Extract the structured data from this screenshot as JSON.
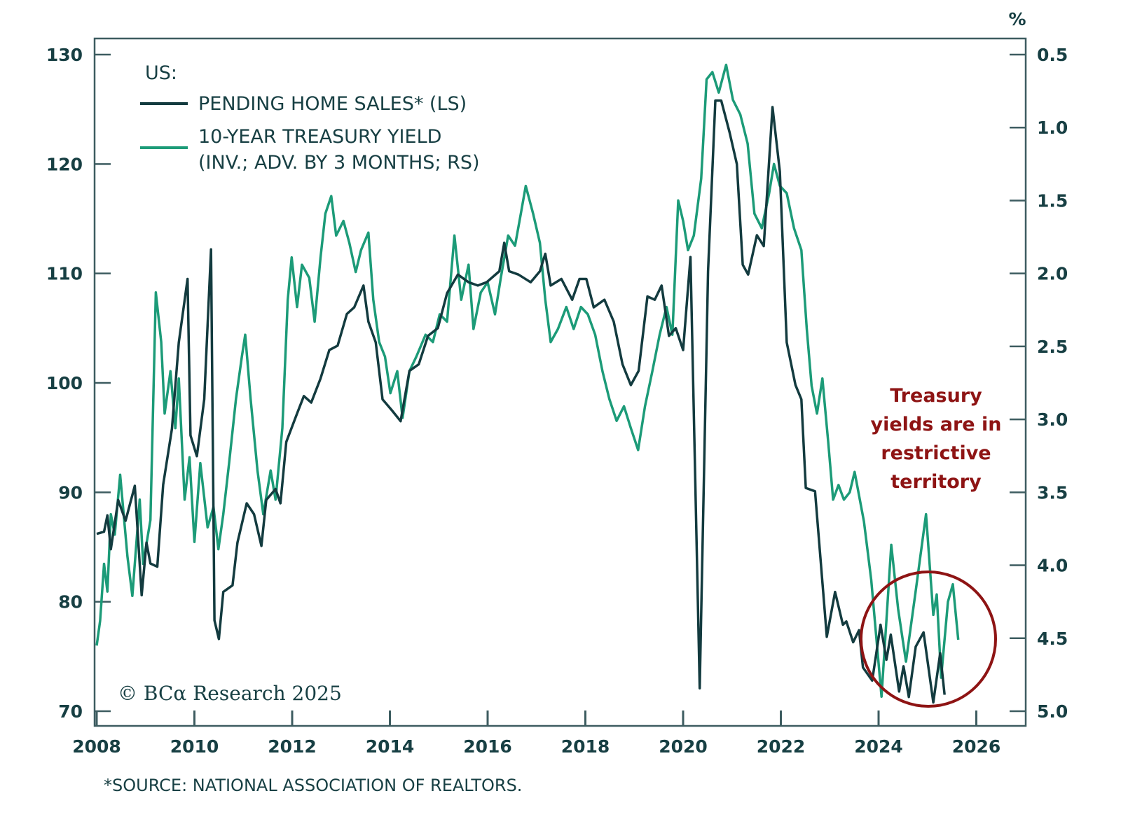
{
  "chart_data": {
    "type": "line",
    "title": "US:",
    "unit_right": "%",
    "x_ticks": [
      "2008",
      "2010",
      "2012",
      "2014",
      "2016",
      "2018",
      "2020",
      "2022",
      "2024",
      "2026"
    ],
    "xlim": [
      2008,
      2026.8
    ],
    "left_axis": {
      "ylim": [
        70,
        130
      ],
      "ticks": [
        "130",
        "120",
        "110",
        "100",
        "90",
        "80",
        "70"
      ]
    },
    "right_axis": {
      "ylim": [
        0.5,
        5.0
      ],
      "inverted": true,
      "ticks": [
        "0.5",
        "1.0",
        "1.5",
        "2.0",
        "2.5",
        "3.0",
        "3.5",
        "4.0",
        "4.5",
        "5.0"
      ]
    },
    "series": [
      {
        "name": "PENDING HOME SALES* (LS)",
        "axis": "left",
        "color": "#133b3f",
        "points": [
          [
            2008.0,
            86.2
          ],
          [
            2008.15,
            86.4
          ],
          [
            2008.22,
            87.9
          ],
          [
            2008.29,
            84.8
          ],
          [
            2008.44,
            89.3
          ],
          [
            2008.59,
            87.4
          ],
          [
            2008.78,
            90.6
          ],
          [
            2008.92,
            80.6
          ],
          [
            2009.02,
            85.4
          ],
          [
            2009.1,
            83.5
          ],
          [
            2009.24,
            83.2
          ],
          [
            2009.36,
            90.7
          ],
          [
            2009.54,
            95.8
          ],
          [
            2009.68,
            103.7
          ],
          [
            2009.86,
            109.5
          ],
          [
            2009.92,
            95.2
          ],
          [
            2010.05,
            93.3
          ],
          [
            2010.2,
            98.5
          ],
          [
            2010.34,
            112.2
          ],
          [
            2010.41,
            78.3
          ],
          [
            2010.5,
            76.6
          ],
          [
            2010.59,
            80.9
          ],
          [
            2010.78,
            81.5
          ],
          [
            2010.88,
            85.4
          ],
          [
            2011.07,
            89
          ],
          [
            2011.22,
            88
          ],
          [
            2011.37,
            85.1
          ],
          [
            2011.47,
            89.3
          ],
          [
            2011.66,
            90.3
          ],
          [
            2011.76,
            89
          ],
          [
            2011.88,
            94.6
          ],
          [
            2012.1,
            97.2
          ],
          [
            2012.24,
            98.8
          ],
          [
            2012.39,
            98.2
          ],
          [
            2012.58,
            100.4
          ],
          [
            2012.76,
            103
          ],
          [
            2012.93,
            103.4
          ],
          [
            2013.12,
            106.3
          ],
          [
            2013.27,
            106.9
          ],
          [
            2013.46,
            108.9
          ],
          [
            2013.56,
            105.6
          ],
          [
            2013.71,
            103.7
          ],
          [
            2013.85,
            98.5
          ],
          [
            2014.04,
            97.5
          ],
          [
            2014.22,
            96.5
          ],
          [
            2014.4,
            101.1
          ],
          [
            2014.59,
            101.7
          ],
          [
            2014.78,
            104.3
          ],
          [
            2014.98,
            105
          ],
          [
            2015.17,
            108.2
          ],
          [
            2015.39,
            109.9
          ],
          [
            2015.61,
            109.2
          ],
          [
            2015.8,
            108.9
          ],
          [
            2015.98,
            109.2
          ],
          [
            2016.24,
            110.2
          ],
          [
            2016.34,
            112.8
          ],
          [
            2016.44,
            110.2
          ],
          [
            2016.63,
            109.9
          ],
          [
            2016.88,
            109.2
          ],
          [
            2017.07,
            110.2
          ],
          [
            2017.18,
            111.8
          ],
          [
            2017.29,
            108.9
          ],
          [
            2017.51,
            109.5
          ],
          [
            2017.73,
            107.6
          ],
          [
            2017.88,
            109.5
          ],
          [
            2018.02,
            109.5
          ],
          [
            2018.17,
            106.9
          ],
          [
            2018.39,
            107.6
          ],
          [
            2018.58,
            105.6
          ],
          [
            2018.76,
            101.7
          ],
          [
            2018.93,
            99.8
          ],
          [
            2019.09,
            101.1
          ],
          [
            2019.27,
            107.9
          ],
          [
            2019.42,
            107.6
          ],
          [
            2019.56,
            108.9
          ],
          [
            2019.71,
            104.3
          ],
          [
            2019.85,
            105
          ],
          [
            2020.0,
            103
          ],
          [
            2020.15,
            111.5
          ],
          [
            2020.34,
            72.1
          ],
          [
            2020.51,
            110.2
          ],
          [
            2020.66,
            125.8
          ],
          [
            2020.78,
            125.8
          ],
          [
            2020.95,
            122.9
          ],
          [
            2021.1,
            120
          ],
          [
            2021.22,
            110.8
          ],
          [
            2021.33,
            109.9
          ],
          [
            2021.51,
            113.5
          ],
          [
            2021.65,
            112.5
          ],
          [
            2021.83,
            125.2
          ],
          [
            2021.98,
            119.3
          ],
          [
            2022.12,
            103.7
          ],
          [
            2022.3,
            99.8
          ],
          [
            2022.42,
            98.5
          ],
          [
            2022.51,
            90.4
          ],
          [
            2022.7,
            90.1
          ],
          [
            2022.94,
            76.8
          ],
          [
            2023.11,
            80.9
          ],
          [
            2023.27,
            77.9
          ],
          [
            2023.34,
            78.2
          ],
          [
            2023.48,
            76.3
          ],
          [
            2023.6,
            77.4
          ],
          [
            2023.68,
            74.0
          ],
          [
            2023.87,
            72.8
          ],
          [
            2024.04,
            77.9
          ],
          [
            2024.16,
            74.7
          ],
          [
            2024.25,
            77.0
          ],
          [
            2024.42,
            71.8
          ],
          [
            2024.51,
            74.1
          ],
          [
            2024.62,
            71.3
          ],
          [
            2024.76,
            75.9
          ],
          [
            2024.92,
            77.2
          ],
          [
            2025.12,
            70.8
          ],
          [
            2025.26,
            75.3
          ],
          [
            2025.35,
            71.5
          ]
        ]
      },
      {
        "name": "10-YEAR TREASURY YIELD (INV.; ADV. BY 3 MONTHS; RS)",
        "axis": "right",
        "color": "#1c9b78",
        "points": [
          [
            2008.0,
            4.55
          ],
          [
            2008.07,
            4.38
          ],
          [
            2008.15,
            3.99
          ],
          [
            2008.22,
            4.18
          ],
          [
            2008.29,
            3.65
          ],
          [
            2008.37,
            3.79
          ],
          [
            2008.48,
            3.38
          ],
          [
            2008.63,
            3.94
          ],
          [
            2008.73,
            4.21
          ],
          [
            2008.88,
            3.55
          ],
          [
            2008.95,
            3.99
          ],
          [
            2009.1,
            3.69
          ],
          [
            2009.21,
            2.13
          ],
          [
            2009.32,
            2.47
          ],
          [
            2009.39,
            2.96
          ],
          [
            2009.51,
            2.67
          ],
          [
            2009.61,
            3.06
          ],
          [
            2009.68,
            2.72
          ],
          [
            2009.8,
            3.55
          ],
          [
            2009.9,
            3.26
          ],
          [
            2010.0,
            3.84
          ],
          [
            2010.12,
            3.3
          ],
          [
            2010.27,
            3.74
          ],
          [
            2010.39,
            3.6
          ],
          [
            2010.49,
            3.89
          ],
          [
            2010.59,
            3.65
          ],
          [
            2010.71,
            3.3
          ],
          [
            2010.85,
            2.86
          ],
          [
            2010.97,
            2.57
          ],
          [
            2011.04,
            2.42
          ],
          [
            2011.15,
            2.86
          ],
          [
            2011.29,
            3.35
          ],
          [
            2011.41,
            3.65
          ],
          [
            2011.56,
            3.35
          ],
          [
            2011.66,
            3.55
          ],
          [
            2011.8,
            3.06
          ],
          [
            2011.91,
            2.18
          ],
          [
            2011.99,
            1.89
          ],
          [
            2012.1,
            2.23
          ],
          [
            2012.2,
            1.94
          ],
          [
            2012.35,
            2.03
          ],
          [
            2012.46,
            2.33
          ],
          [
            2012.58,
            1.89
          ],
          [
            2012.68,
            1.59
          ],
          [
            2012.8,
            1.47
          ],
          [
            2012.9,
            1.74
          ],
          [
            2013.05,
            1.64
          ],
          [
            2013.17,
            1.79
          ],
          [
            2013.3,
            1.99
          ],
          [
            2013.41,
            1.84
          ],
          [
            2013.56,
            1.72
          ],
          [
            2013.66,
            2.18
          ],
          [
            2013.78,
            2.47
          ],
          [
            2013.9,
            2.57
          ],
          [
            2014.01,
            2.82
          ],
          [
            2014.15,
            2.67
          ],
          [
            2014.26,
            2.99
          ],
          [
            2014.4,
            2.67
          ],
          [
            2014.54,
            2.57
          ],
          [
            2014.73,
            2.42
          ],
          [
            2014.88,
            2.47
          ],
          [
            2015.02,
            2.28
          ],
          [
            2015.17,
            2.33
          ],
          [
            2015.32,
            1.74
          ],
          [
            2015.46,
            2.18
          ],
          [
            2015.61,
            1.94
          ],
          [
            2015.71,
            2.38
          ],
          [
            2015.86,
            2.13
          ],
          [
            2016.0,
            2.06
          ],
          [
            2016.15,
            2.28
          ],
          [
            2016.27,
            2.03
          ],
          [
            2016.42,
            1.74
          ],
          [
            2016.56,
            1.81
          ],
          [
            2016.68,
            1.59
          ],
          [
            2016.78,
            1.4
          ],
          [
            2016.93,
            1.59
          ],
          [
            2017.07,
            1.79
          ],
          [
            2017.18,
            2.18
          ],
          [
            2017.29,
            2.47
          ],
          [
            2017.44,
            2.38
          ],
          [
            2017.61,
            2.23
          ],
          [
            2017.76,
            2.38
          ],
          [
            2017.91,
            2.23
          ],
          [
            2018.05,
            2.28
          ],
          [
            2018.2,
            2.42
          ],
          [
            2018.35,
            2.67
          ],
          [
            2018.49,
            2.86
          ],
          [
            2018.64,
            3.01
          ],
          [
            2018.79,
            2.91
          ],
          [
            2018.93,
            3.06
          ],
          [
            2019.08,
            3.21
          ],
          [
            2019.22,
            2.91
          ],
          [
            2019.37,
            2.67
          ],
          [
            2019.52,
            2.42
          ],
          [
            2019.66,
            2.23
          ],
          [
            2019.78,
            2.42
          ],
          [
            2019.9,
            1.5
          ],
          [
            2020.0,
            1.64
          ],
          [
            2020.1,
            1.84
          ],
          [
            2020.22,
            1.74
          ],
          [
            2020.37,
            1.35
          ],
          [
            2020.48,
            0.67
          ],
          [
            2020.6,
            0.62
          ],
          [
            2020.73,
            0.76
          ],
          [
            2020.88,
            0.57
          ],
          [
            2021.02,
            0.81
          ],
          [
            2021.17,
            0.91
          ],
          [
            2021.32,
            1.11
          ],
          [
            2021.46,
            1.59
          ],
          [
            2021.61,
            1.69
          ],
          [
            2021.76,
            1.45
          ],
          [
            2021.86,
            1.25
          ],
          [
            2021.98,
            1.4
          ],
          [
            2022.12,
            1.45
          ],
          [
            2022.27,
            1.69
          ],
          [
            2022.42,
            1.84
          ],
          [
            2022.53,
            2.38
          ],
          [
            2022.63,
            2.77
          ],
          [
            2022.74,
            2.96
          ],
          [
            2022.85,
            2.72
          ],
          [
            2022.97,
            3.16
          ],
          [
            2023.07,
            3.55
          ],
          [
            2023.18,
            3.45
          ],
          [
            2023.29,
            3.55
          ],
          [
            2023.41,
            3.5
          ],
          [
            2023.51,
            3.36
          ],
          [
            2023.7,
            3.7
          ],
          [
            2023.85,
            4.1
          ],
          [
            2024.06,
            4.9
          ],
          [
            2024.26,
            3.86
          ],
          [
            2024.4,
            4.3
          ],
          [
            2024.56,
            4.66
          ],
          [
            2024.75,
            4.2
          ],
          [
            2024.97,
            3.65
          ],
          [
            2025.12,
            4.34
          ],
          [
            2025.19,
            4.2
          ],
          [
            2025.28,
            4.77
          ],
          [
            2025.42,
            4.25
          ],
          [
            2025.52,
            4.13
          ],
          [
            2025.63,
            4.51
          ]
        ]
      }
    ],
    "legend": {
      "title": "US:",
      "line1": "PENDING HOME SALES* (LS)",
      "line2a": "10-YEAR TREASURY YIELD",
      "line2b": "(INV.; ADV. BY 3 MONTHS; RS)",
      "placement": "top-left"
    },
    "annotation": {
      "lines": [
        "Treasury",
        "yields are in",
        "restrictive",
        "territory"
      ],
      "color": "#8e1414",
      "circled_period": [
        2024.0,
        2025.7
      ]
    },
    "copyright": "© BCα Research 2025",
    "source": "*SOURCE: NATIONAL ASSOCIATION OF REALTORS."
  }
}
